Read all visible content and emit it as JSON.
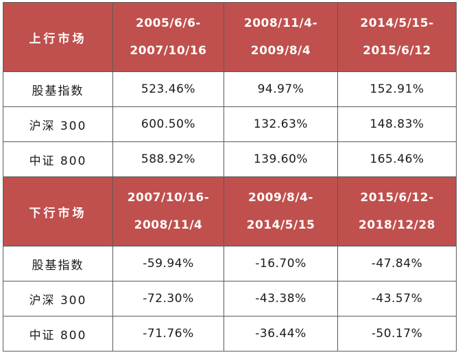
{
  "sections": [
    {
      "label": "上行市场",
      "periods": [
        {
          "start": "2005/6/6-",
          "end": "2007/10/16"
        },
        {
          "start": "2008/11/4-",
          "end": "2009/8/4"
        },
        {
          "start": "2014/5/15-",
          "end": "2015/6/12"
        }
      ],
      "rows": [
        {
          "name": "股基指数",
          "values": [
            "523.46%",
            "94.97%",
            "152.91%"
          ]
        },
        {
          "name": "沪深 300",
          "values": [
            "600.50%",
            "132.63%",
            "148.83%"
          ]
        },
        {
          "name": "中证 800",
          "values": [
            "588.92%",
            "139.60%",
            "165.46%"
          ]
        }
      ]
    },
    {
      "label": "下行市场",
      "periods": [
        {
          "start": "2007/10/16-",
          "end": "2008/11/4"
        },
        {
          "start": "2009/8/4-",
          "end": "2014/5/15"
        },
        {
          "start": "2015/6/12-",
          "end": "2018/12/28"
        }
      ],
      "rows": [
        {
          "name": "股基指数",
          "values": [
            "-59.94%",
            "-16.70%",
            "-47.84%"
          ]
        },
        {
          "name": "沪深 300",
          "values": [
            "-72.30%",
            "-43.38%",
            "-43.57%"
          ]
        },
        {
          "name": "中证 800",
          "values": [
            "-71.76%",
            "-36.44%",
            "-50.17%"
          ]
        }
      ]
    }
  ],
  "colors": {
    "header_bg": "#c0504d",
    "header_text": "#ffffff",
    "grid": "#5a5a5a"
  }
}
